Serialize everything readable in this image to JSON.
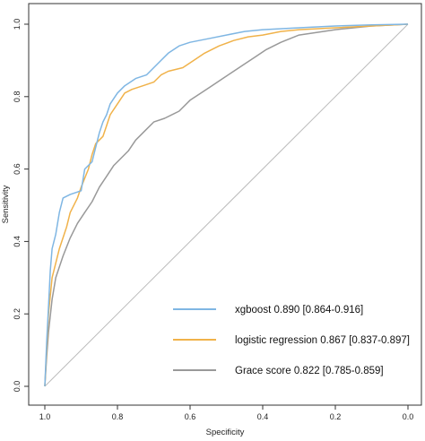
{
  "chart_data": {
    "type": "line",
    "title": "",
    "xlabel": "Specificity",
    "ylabel": "Sensitivity",
    "xlim": [
      1.0,
      0.0
    ],
    "ylim": [
      0.0,
      1.0
    ],
    "x_axis_reversed": true,
    "x_ticks": [
      "1.0",
      "0.8",
      "0.6",
      "0.4",
      "0.2",
      "0.0"
    ],
    "y_ticks": [
      "0.0",
      "0.2",
      "0.4",
      "0.6",
      "0.8",
      "1.0"
    ],
    "grid": false,
    "legend_position": "bottom-right",
    "reference_line": {
      "from": [
        1.0,
        0.0
      ],
      "to": [
        0.0,
        1.0
      ],
      "color": "#bbbbbb"
    },
    "series": [
      {
        "name": "xgboost 0.890 [0.864-0.916]",
        "color": "#7fb6e3",
        "points": [
          [
            1.0,
            0.0
          ],
          [
            0.995,
            0.12
          ],
          [
            0.99,
            0.22
          ],
          [
            0.985,
            0.32
          ],
          [
            0.98,
            0.38
          ],
          [
            0.97,
            0.42
          ],
          [
            0.96,
            0.48
          ],
          [
            0.95,
            0.52
          ],
          [
            0.93,
            0.53
          ],
          [
            0.9,
            0.54
          ],
          [
            0.89,
            0.6
          ],
          [
            0.87,
            0.62
          ],
          [
            0.86,
            0.66
          ],
          [
            0.85,
            0.7
          ],
          [
            0.84,
            0.73
          ],
          [
            0.83,
            0.75
          ],
          [
            0.82,
            0.78
          ],
          [
            0.8,
            0.81
          ],
          [
            0.78,
            0.83
          ],
          [
            0.75,
            0.85
          ],
          [
            0.72,
            0.86
          ],
          [
            0.7,
            0.88
          ],
          [
            0.68,
            0.9
          ],
          [
            0.66,
            0.92
          ],
          [
            0.63,
            0.94
          ],
          [
            0.6,
            0.95
          ],
          [
            0.55,
            0.96
          ],
          [
            0.5,
            0.97
          ],
          [
            0.45,
            0.98
          ],
          [
            0.4,
            0.985
          ],
          [
            0.3,
            0.99
          ],
          [
            0.2,
            0.995
          ],
          [
            0.1,
            0.998
          ],
          [
            0.0,
            1.0
          ]
        ]
      },
      {
        "name": "logistic regression 0.867 [0.837-0.897]",
        "color": "#f0b24a",
        "points": [
          [
            1.0,
            0.0
          ],
          [
            0.995,
            0.1
          ],
          [
            0.99,
            0.2
          ],
          [
            0.98,
            0.3
          ],
          [
            0.96,
            0.38
          ],
          [
            0.94,
            0.44
          ],
          [
            0.93,
            0.48
          ],
          [
            0.91,
            0.52
          ],
          [
            0.9,
            0.55
          ],
          [
            0.88,
            0.6
          ],
          [
            0.87,
            0.64
          ],
          [
            0.86,
            0.67
          ],
          [
            0.84,
            0.69
          ],
          [
            0.83,
            0.72
          ],
          [
            0.82,
            0.75
          ],
          [
            0.8,
            0.78
          ],
          [
            0.78,
            0.81
          ],
          [
            0.76,
            0.82
          ],
          [
            0.73,
            0.83
          ],
          [
            0.7,
            0.84
          ],
          [
            0.68,
            0.86
          ],
          [
            0.66,
            0.87
          ],
          [
            0.62,
            0.88
          ],
          [
            0.59,
            0.9
          ],
          [
            0.56,
            0.92
          ],
          [
            0.52,
            0.94
          ],
          [
            0.48,
            0.955
          ],
          [
            0.44,
            0.965
          ],
          [
            0.4,
            0.97
          ],
          [
            0.35,
            0.98
          ],
          [
            0.3,
            0.985
          ],
          [
            0.2,
            0.99
          ],
          [
            0.1,
            0.995
          ],
          [
            0.0,
            1.0
          ]
        ]
      },
      {
        "name": "Grace score 0.822 [0.785-0.859]",
        "color": "#999999",
        "points": [
          [
            1.0,
            0.0
          ],
          [
            0.995,
            0.08
          ],
          [
            0.99,
            0.15
          ],
          [
            0.98,
            0.24
          ],
          [
            0.97,
            0.3
          ],
          [
            0.95,
            0.36
          ],
          [
            0.93,
            0.41
          ],
          [
            0.91,
            0.45
          ],
          [
            0.89,
            0.48
          ],
          [
            0.87,
            0.51
          ],
          [
            0.85,
            0.55
          ],
          [
            0.83,
            0.58
          ],
          [
            0.81,
            0.61
          ],
          [
            0.79,
            0.63
          ],
          [
            0.77,
            0.65
          ],
          [
            0.75,
            0.68
          ],
          [
            0.72,
            0.71
          ],
          [
            0.7,
            0.73
          ],
          [
            0.67,
            0.74
          ],
          [
            0.63,
            0.76
          ],
          [
            0.6,
            0.79
          ],
          [
            0.57,
            0.81
          ],
          [
            0.54,
            0.83
          ],
          [
            0.51,
            0.85
          ],
          [
            0.48,
            0.87
          ],
          [
            0.45,
            0.89
          ],
          [
            0.42,
            0.91
          ],
          [
            0.39,
            0.93
          ],
          [
            0.35,
            0.95
          ],
          [
            0.3,
            0.97
          ],
          [
            0.2,
            0.985
          ],
          [
            0.1,
            0.995
          ],
          [
            0.0,
            1.0
          ]
        ]
      }
    ]
  }
}
